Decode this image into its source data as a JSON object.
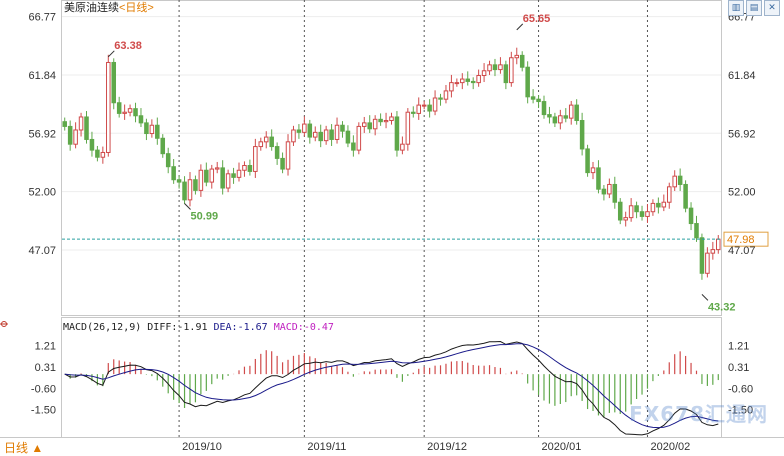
{
  "header": {
    "title": "美原油连续",
    "period_tag": "<日线>"
  },
  "toolbar": {
    "icons": [
      "candlestick-icon",
      "bar-chart-icon",
      "close-icon"
    ]
  },
  "footer": {
    "period_label": "日线 ▲"
  },
  "watermark": "FX678汇通网",
  "colors": {
    "up": "#d04a4a",
    "down": "#5fa84a",
    "last_price_line": "#2aa0a0",
    "dif": "#1a1a1a",
    "dea": "#1a1a8a",
    "macd_label": "#c020c0"
  },
  "chart_data": [
    {
      "type": "candlestick",
      "title": "美原油连续<日线>",
      "y_ticks": [
        "66.77",
        "61.84",
        "56.92",
        "52.00",
        "47.07"
      ],
      "ylim": [
        42.0,
        67.5
      ],
      "x_ticks": [
        "2019/10",
        "2019/11",
        "2019/12",
        "2020/01",
        "2020/02"
      ],
      "annotations": [
        {
          "label": "63.38",
          "kind": "high"
        },
        {
          "label": "50.99",
          "kind": "low"
        },
        {
          "label": "65.65",
          "kind": "high"
        },
        {
          "label": "43.32",
          "kind": "low"
        }
      ],
      "last_price": "47.98",
      "closes": [
        57.5,
        56.0,
        57.2,
        58.3,
        56.4,
        55.5,
        54.9,
        55.3,
        62.9,
        59.5,
        58.6,
        58.7,
        59.0,
        58.4,
        57.8,
        56.9,
        57.6,
        56.5,
        55.2,
        54.1,
        53.0,
        52.8,
        51.3,
        53.0,
        52.1,
        53.8,
        52.8,
        53.9,
        54.0,
        52.3,
        53.5,
        53.2,
        53.8,
        54.2,
        53.7,
        55.8,
        56.2,
        56.6,
        55.8,
        54.8,
        53.9,
        56.2,
        57.2,
        57.0,
        57.7,
        56.6,
        57.0,
        56.3,
        57.2,
        56.4,
        57.6,
        57.1,
        56.1,
        55.5,
        57.5,
        57.8,
        57.3,
        58.1,
        57.9,
        58.0,
        58.3,
        55.5,
        56.0,
        58.7,
        58.6,
        59.3,
        59.3,
        58.8,
        59.9,
        59.8,
        60.5,
        61.2,
        61.2,
        61.5,
        61.3,
        61.2,
        61.8,
        62.2,
        62.7,
        62.3,
        62.7,
        61.2,
        63.3,
        63.5,
        62.5,
        60.0,
        59.8,
        59.6,
        58.5,
        58.3,
        57.8,
        58.4,
        58.2,
        59.3,
        58.0,
        55.6,
        53.6,
        54.0,
        52.2,
        51.8,
        52.6,
        51.1,
        49.6,
        49.8,
        50.8,
        50.3,
        49.9,
        50.3,
        51.0,
        50.7,
        51.1,
        52.4,
        53.3,
        52.6,
        50.6,
        49.3,
        48.1,
        45.1,
        46.8,
        47.1,
        47.98
      ],
      "indicator": {
        "title": "MACD(26,12,9)",
        "values": [
          {
            "label": "DIFF",
            "value": "-1.91"
          },
          {
            "label": "DEA",
            "value": "-1.67"
          },
          {
            "label": "MACD",
            "value": "-0.47"
          }
        ],
        "y_ticks": [
          "1.21",
          "0.31",
          "-0.60",
          "-1.50"
        ],
        "ylim": [
          -2.45,
          1.7
        ]
      }
    }
  ]
}
